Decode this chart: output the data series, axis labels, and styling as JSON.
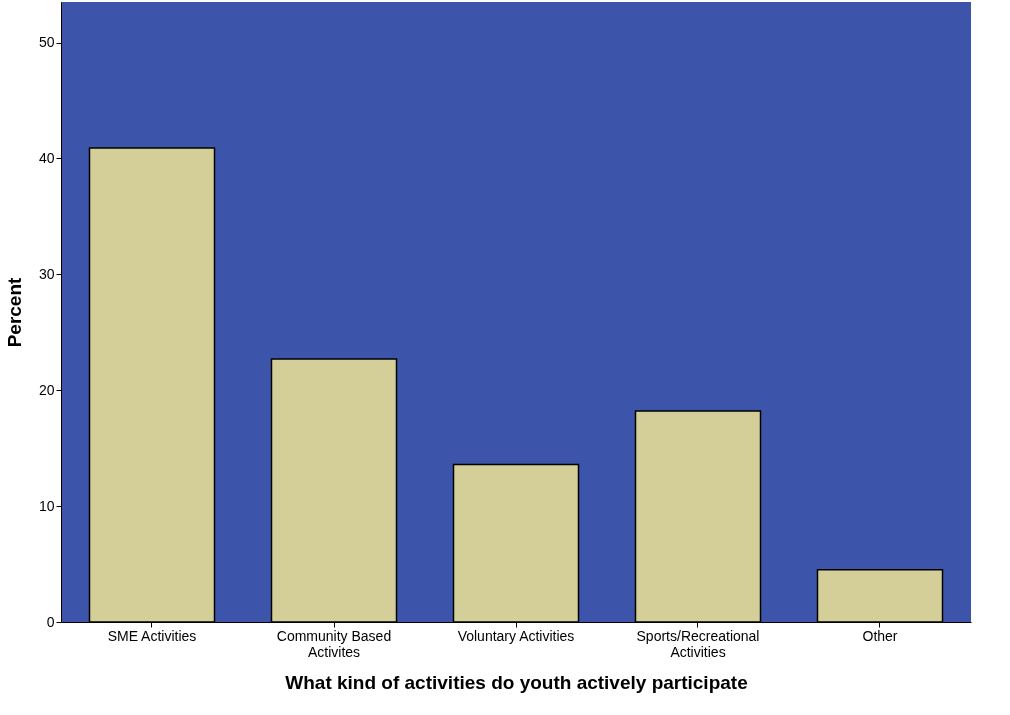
{
  "chart_data": {
    "type": "bar",
    "xlabel": "What kind of activities do youth actively participate",
    "ylabel": "Percent",
    "categories": [
      "SME Activities",
      "Community Based Activites",
      "Voluntary Activities",
      "Sports/Recreational Activities",
      "Other"
    ],
    "values": [
      40.9,
      22.7,
      13.6,
      18.2,
      4.5
    ],
    "color": "#d4cf98",
    "ylim": [
      0,
      53.5
    ],
    "yticks": [
      0,
      10,
      20,
      30,
      40,
      50
    ],
    "grid": false
  }
}
